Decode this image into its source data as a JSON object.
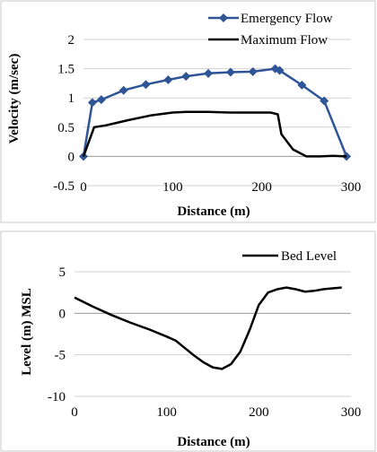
{
  "chart_data": [
    {
      "type": "line",
      "xlabel": "Distance (m)",
      "ylabel": "Velocity (m/sec)",
      "xlim": [
        0,
        300
      ],
      "ylim": [
        -0.5,
        2
      ],
      "x_ticks": [
        "0",
        "100",
        "200",
        "300"
      ],
      "y_ticks": [
        "-0.5",
        "0",
        "0.5",
        "1",
        "1.5",
        "2"
      ],
      "grid": "horizontal",
      "legend": "top-right",
      "series": [
        {
          "name": "Emergency Flow",
          "color": "#2f5597",
          "marker": "diamond",
          "x": [
            0,
            10,
            20,
            45,
            70,
            95,
            115,
            140,
            165,
            190,
            215,
            220,
            245,
            270,
            295
          ],
          "y": [
            0,
            0.92,
            0.97,
            1.13,
            1.23,
            1.31,
            1.37,
            1.42,
            1.44,
            1.45,
            1.5,
            1.47,
            1.22,
            0.95,
            0
          ]
        },
        {
          "name": "Maximum Flow",
          "color": "#000000",
          "marker": "none",
          "x": [
            0,
            12,
            25,
            50,
            75,
            100,
            115,
            140,
            165,
            190,
            210,
            218,
            222,
            235,
            250,
            265,
            280,
            295
          ],
          "y": [
            0,
            0.5,
            0.53,
            0.62,
            0.7,
            0.75,
            0.76,
            0.76,
            0.75,
            0.75,
            0.75,
            0.72,
            0.38,
            0.12,
            0.0,
            0.0,
            0.01,
            0
          ]
        }
      ]
    },
    {
      "type": "line",
      "xlabel": "Distance (m)",
      "ylabel": "Level (m) MSL",
      "xlim": [
        0,
        300
      ],
      "ylim": [
        -10,
        5
      ],
      "x_ticks": [
        "0",
        "100",
        "200",
        "300"
      ],
      "y_ticks": [
        "-10",
        "-5",
        "0",
        "5"
      ],
      "grid": "horizontal",
      "legend": "top-right",
      "series": [
        {
          "name": "Bed Level",
          "color": "#000000",
          "marker": "none",
          "x": [
            0,
            20,
            40,
            60,
            80,
            100,
            110,
            120,
            130,
            140,
            150,
            160,
            170,
            180,
            190,
            200,
            210,
            220,
            230,
            240,
            250,
            260,
            270,
            280,
            290
          ],
          "y": [
            1.9,
            0.8,
            -0.2,
            -1.1,
            -1.9,
            -2.8,
            -3.3,
            -4.2,
            -5.1,
            -5.9,
            -6.5,
            -6.7,
            -6.1,
            -4.6,
            -2.0,
            1.0,
            2.5,
            2.9,
            3.1,
            2.9,
            2.6,
            2.7,
            2.9,
            3.0,
            3.1
          ]
        }
      ]
    }
  ]
}
